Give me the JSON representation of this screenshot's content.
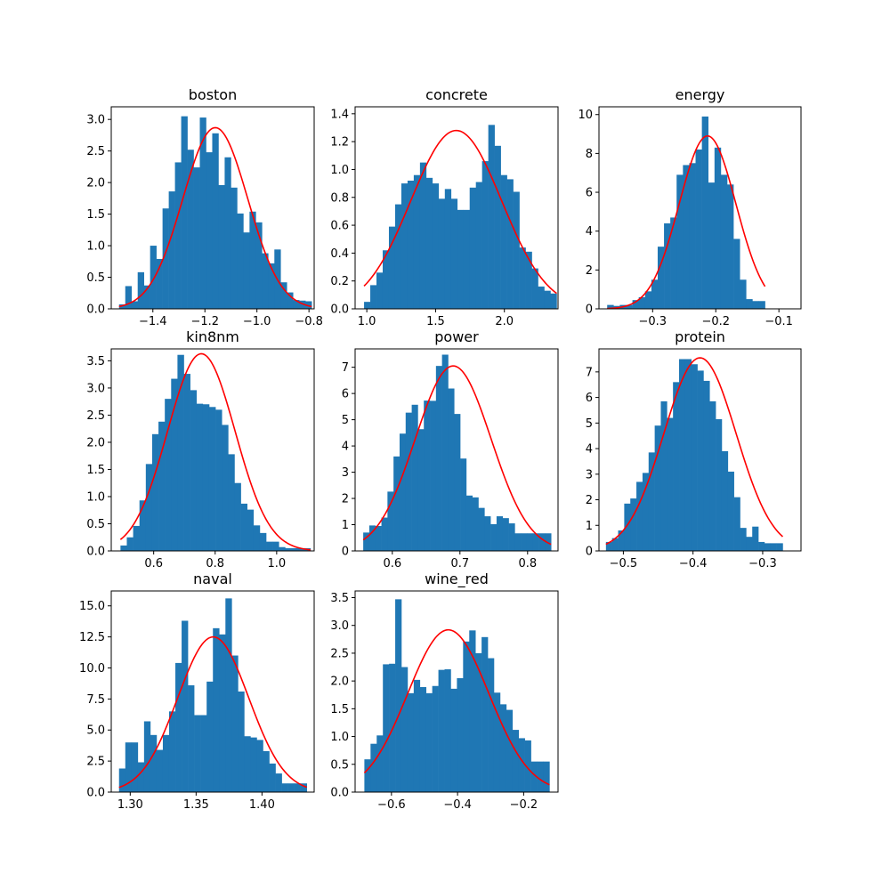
{
  "chart_data": [
    {
      "type": "bar",
      "title": "boston",
      "bar_color": "#1f77b4",
      "curve_color": "#ff0000",
      "xlim": [
        -1.56,
        -0.78
      ],
      "ylim": [
        0,
        3.2
      ],
      "xticks": [
        -1.4,
        -1.2,
        -1.0,
        -0.8
      ],
      "xtick_labels": [
        "−1.4",
        "−1.2",
        "−1.0",
        "−0.8"
      ],
      "yticks": [
        0,
        0.5,
        1,
        1.5,
        2,
        2.5,
        3
      ],
      "ytick_labels": [
        "0.0",
        "0.5",
        "1.0",
        "1.5",
        "2.0",
        "2.5",
        "3.0"
      ],
      "bin_start": -1.53,
      "bin_width": 0.02388,
      "values": [
        0.07,
        0.36,
        0.12,
        0.58,
        0.37,
        1.0,
        0.79,
        1.59,
        1.86,
        2.32,
        3.05,
        2.52,
        2.24,
        3.03,
        2.48,
        2.78,
        1.96,
        2.4,
        1.92,
        1.51,
        1.21,
        1.54,
        1.37,
        0.88,
        0.72,
        0.94,
        0.42,
        0.26,
        0.14,
        0.13,
        0.12
      ],
      "curve": {
        "mean": -1.16,
        "sd": 0.125,
        "peak": 2.87
      }
    },
    {
      "type": "bar",
      "title": "concrete",
      "bar_color": "#1f77b4",
      "curve_color": "#ff0000",
      "xlim": [
        0.915,
        2.39
      ],
      "ylim": [
        0,
        1.45
      ],
      "xticks": [
        1.0,
        1.5,
        2.0
      ],
      "xtick_labels": [
        "1.0",
        "1.5",
        "2.0"
      ],
      "yticks": [
        0,
        0.2,
        0.4,
        0.6,
        0.8,
        1.0,
        1.2,
        1.4
      ],
      "ytick_labels": [
        "0.0",
        "0.2",
        "0.4",
        "0.6",
        "0.8",
        "1.0",
        "1.2",
        "1.4"
      ],
      "bin_start": 0.98,
      "bin_width": 0.04516,
      "values": [
        0.05,
        0.17,
        0.26,
        0.42,
        0.59,
        0.75,
        0.9,
        0.92,
        0.96,
        1.05,
        0.94,
        0.9,
        0.79,
        0.86,
        0.79,
        0.71,
        0.71,
        0.87,
        0.91,
        1.06,
        1.32,
        1.17,
        0.96,
        0.93,
        0.84,
        0.44,
        0.41,
        0.29,
        0.16,
        0.13,
        0.11
      ],
      "curve": {
        "mean": 1.65,
        "sd": 0.33,
        "peak": 1.28
      }
    },
    {
      "type": "bar",
      "title": "energy",
      "bar_color": "#1f77b4",
      "curve_color": "#ff0000",
      "xlim": [
        -0.385,
        -0.065
      ],
      "ylim": [
        0,
        10.4
      ],
      "xticks": [
        -0.3,
        -0.2,
        -0.1
      ],
      "xtick_labels": [
        "−0.3",
        "−0.2",
        "−0.1"
      ],
      "yticks": [
        0,
        2,
        4,
        6,
        8,
        10
      ],
      "ytick_labels": [
        "0",
        "2",
        "4",
        "6",
        "8",
        "10"
      ],
      "bin_start": -0.372,
      "bin_width": 0.01,
      "values": [
        0.2,
        0.15,
        0.2,
        0.2,
        0.45,
        0.6,
        0.9,
        1.5,
        3.2,
        4.4,
        4.7,
        6.9,
        7.4,
        7.5,
        8.2,
        9.9,
        6.5,
        8.3,
        6.9,
        6.4,
        3.6,
        1.5,
        0.5,
        0.4,
        0.4
      ],
      "curve": {
        "mean": -0.213,
        "sd": 0.045,
        "peak": 8.9
      }
    },
    {
      "type": "bar",
      "title": "kin8nm",
      "bar_color": "#1f77b4",
      "curve_color": "#ff0000",
      "xlim": [
        0.462,
        1.122
      ],
      "ylim": [
        0,
        3.72
      ],
      "xticks": [
        0.6,
        0.8,
        1.0
      ],
      "xtick_labels": [
        "0.6",
        "0.8",
        "1.0"
      ],
      "yticks": [
        0,
        0.5,
        1,
        1.5,
        2,
        2.5,
        3,
        3.5
      ],
      "ytick_labels": [
        "0.0",
        "0.5",
        "1.0",
        "1.5",
        "2.0",
        "2.5",
        "3.0",
        "3.5"
      ],
      "bin_start": 0.492,
      "bin_width": 0.0206,
      "values": [
        0.1,
        0.25,
        0.46,
        0.93,
        1.6,
        2.15,
        2.38,
        2.8,
        3.17,
        3.61,
        3.26,
        2.96,
        2.71,
        2.7,
        2.65,
        2.6,
        2.32,
        1.78,
        1.25,
        0.87,
        0.76,
        0.47,
        0.33,
        0.17,
        0.17,
        0.07,
        0.05,
        0.05,
        0.05,
        0.05
      ],
      "curve": {
        "mean": 0.755,
        "sd": 0.11,
        "peak": 3.63
      }
    },
    {
      "type": "bar",
      "title": "power",
      "bar_color": "#1f77b4",
      "curve_color": "#ff0000",
      "xlim": [
        0.545,
        0.845
      ],
      "ylim": [
        0,
        7.7
      ],
      "xticks": [
        0.6,
        0.7,
        0.8
      ],
      "xtick_labels": [
        "0.6",
        "0.7",
        "0.8"
      ],
      "yticks": [
        0,
        1,
        2,
        3,
        4,
        5,
        6,
        7
      ],
      "ytick_labels": [
        "0",
        "1",
        "2",
        "3",
        "4",
        "5",
        "6",
        "7"
      ],
      "bin_start": 0.557,
      "bin_width": 0.00896,
      "values": [
        0.7,
        0.97,
        0.95,
        1.27,
        2.26,
        3.6,
        4.47,
        5.27,
        5.57,
        4.64,
        5.73,
        5.72,
        7.05,
        7.48,
        6.19,
        5.22,
        3.52,
        2.11,
        2.04,
        1.64,
        1.32,
        1.02,
        1.32,
        1.25,
        1.05,
        0.67,
        0.67,
        0.67,
        0.67,
        0.67,
        0.67
      ],
      "curve": {
        "mean": 0.69,
        "sd": 0.056,
        "peak": 7.05
      }
    },
    {
      "type": "bar",
      "title": "protein",
      "bar_color": "#1f77b4",
      "curve_color": "#ff0000",
      "xlim": [
        -0.535,
        -0.245
      ],
      "ylim": [
        0,
        7.9
      ],
      "xticks": [
        -0.5,
        -0.4,
        -0.3
      ],
      "xtick_labels": [
        "−0.5",
        "−0.4",
        "−0.3"
      ],
      "yticks": [
        0,
        1,
        2,
        3,
        4,
        5,
        6,
        7
      ],
      "ytick_labels": [
        "0",
        "1",
        "2",
        "3",
        "4",
        "5",
        "6",
        "7"
      ],
      "bin_start": -0.525,
      "bin_width": 0.00875,
      "values": [
        0.35,
        0.5,
        0.8,
        1.85,
        2.05,
        2.7,
        3.05,
        3.85,
        4.9,
        5.85,
        5.2,
        6.6,
        7.5,
        7.5,
        7.3,
        7.05,
        6.65,
        5.85,
        5.15,
        3.9,
        3.1,
        2.1,
        0.9,
        0.55,
        0.95,
        0.35,
        0.3,
        0.3,
        0.3
      ],
      "curve": {
        "mean": -0.39,
        "sd": 0.052,
        "peak": 7.55
      }
    },
    {
      "type": "bar",
      "title": "naval",
      "bar_color": "#1f77b4",
      "curve_color": "#ff0000",
      "xlim": [
        1.2856,
        1.4396
      ],
      "ylim": [
        0,
        16.2
      ],
      "xticks": [
        1.3,
        1.35,
        1.4
      ],
      "xtick_labels": [
        "1.30",
        "1.35",
        "1.40"
      ],
      "yticks": [
        0,
        2.5,
        5,
        7.5,
        10,
        12.5,
        15
      ],
      "ytick_labels": [
        "0.0",
        "2.5",
        "5.0",
        "7.5",
        "10.0",
        "12.5",
        "15.0"
      ],
      "bin_start": 1.2915,
      "bin_width": 0.00475,
      "values": [
        1.9,
        4.0,
        4.0,
        2.4,
        5.7,
        4.6,
        3.4,
        4.6,
        6.5,
        10.4,
        13.8,
        8.6,
        6.2,
        6.2,
        8.9,
        13.2,
        12.7,
        15.6,
        11.0,
        8.1,
        4.5,
        4.4,
        4.2,
        3.3,
        2.3,
        1.5,
        0.7,
        0.7,
        0.7,
        0.7
      ],
      "curve": {
        "mean": 1.363,
        "sd": 0.027,
        "peak": 12.5
      }
    },
    {
      "type": "bar",
      "title": "wine_red",
      "bar_color": "#1f77b4",
      "curve_color": "#ff0000",
      "xlim": [
        -0.71,
        -0.096
      ],
      "ylim": [
        0,
        3.62
      ],
      "xticks": [
        -0.6,
        -0.4,
        -0.2
      ],
      "xtick_labels": [
        "−0.6",
        "−0.4",
        "−0.2"
      ],
      "yticks": [
        0,
        0.5,
        1,
        1.5,
        2,
        2.5,
        3,
        3.5
      ],
      "ytick_labels": [
        "0.0",
        "0.5",
        "1.0",
        "1.5",
        "2.0",
        "2.5",
        "3.0",
        "3.5"
      ],
      "bin_start": -0.682,
      "bin_width": 0.01867,
      "values": [
        0.59,
        0.87,
        1.02,
        2.3,
        2.31,
        3.47,
        2.25,
        1.78,
        2.02,
        1.89,
        1.78,
        1.91,
        2.2,
        2.21,
        1.86,
        2.05,
        2.71,
        2.91,
        2.5,
        2.79,
        2.41,
        1.79,
        1.58,
        1.48,
        1.12,
        0.97,
        0.93,
        0.55,
        0.55,
        0.55
      ],
      "curve": {
        "mean": -0.428,
        "sd": 0.123,
        "peak": 2.92
      }
    }
  ]
}
